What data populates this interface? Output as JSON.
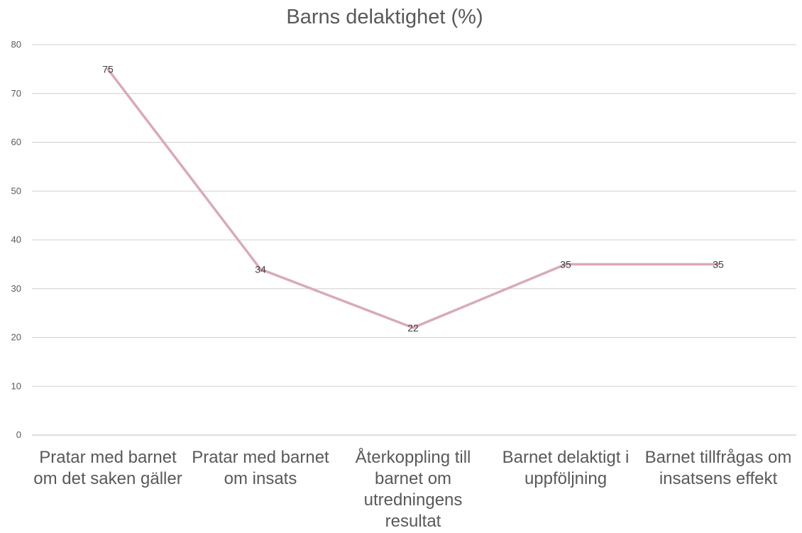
{
  "chart_data": {
    "type": "line",
    "title": "Barns delaktighet (%)",
    "xlabel": "",
    "ylabel": "",
    "ylim": [
      0,
      80
    ],
    "yticks": [
      0,
      10,
      20,
      30,
      40,
      50,
      60,
      70,
      80
    ],
    "grid": true,
    "legend": "none",
    "categories": [
      "Pratar med barnet om det saken gäller",
      "Pratar med barnet om insats",
      "Återkoppling till barnet om utredningens resultat",
      "Barnet delaktigt i uppföljning",
      "Barnet tillfrågas om insatsens effekt"
    ],
    "series": [
      {
        "values": [
          75,
          34,
          22,
          35,
          35
        ],
        "color": "#D9AAB7"
      }
    ]
  }
}
